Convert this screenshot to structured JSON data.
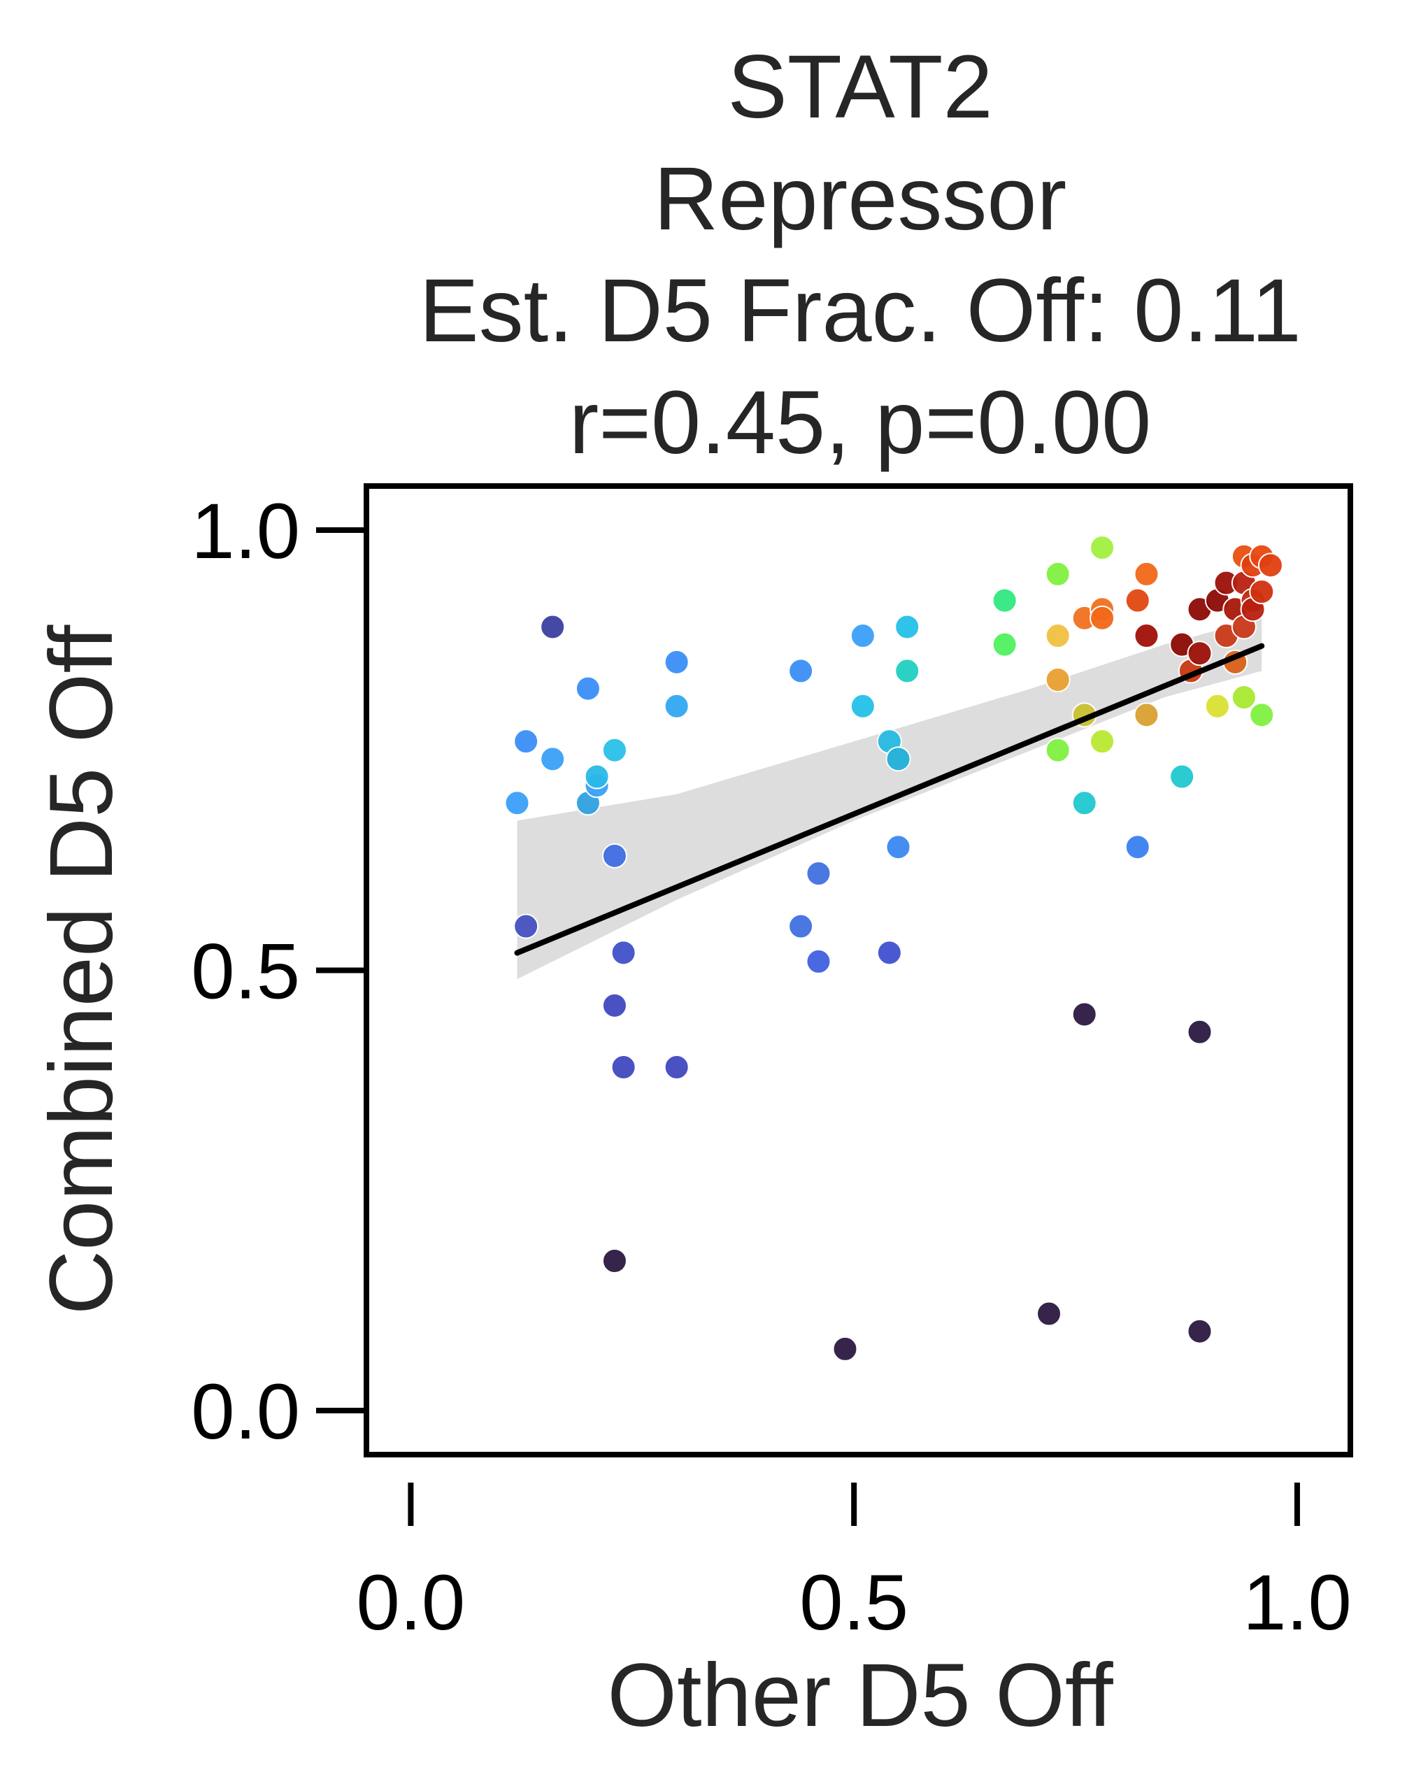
{
  "chart_data": {
    "type": "scatter",
    "title_lines": [
      "STAT2",
      "Repressor",
      "Est. D5 Frac. Off: 0.11",
      "r=0.45, p=0.00"
    ],
    "xlabel": "Other D5 Off",
    "ylabel": "Combined D5 Off",
    "xlim": [
      -0.05,
      1.06
    ],
    "ylim": [
      -0.05,
      1.05
    ],
    "xticks": [
      0.0,
      0.5,
      1.0
    ],
    "yticks": [
      0.0,
      0.5,
      1.0
    ],
    "xtick_labels": [
      "0.0",
      "0.5",
      "1.0"
    ],
    "ytick_labels": [
      "0.0",
      "0.5",
      "1.0"
    ],
    "grid": false,
    "legend": "none",
    "regression": {
      "x_range": [
        0.12,
        0.96
      ],
      "intercept": 0.47,
      "slope": 0.415,
      "ci_lower": [
        [
          0.12,
          0.49
        ],
        [
          0.3,
          0.58
        ],
        [
          0.5,
          0.67
        ],
        [
          0.7,
          0.75
        ],
        [
          0.85,
          0.81
        ],
        [
          0.96,
          0.84
        ]
      ],
      "ci_upper": [
        [
          0.12,
          0.67
        ],
        [
          0.3,
          0.7
        ],
        [
          0.5,
          0.76
        ],
        [
          0.7,
          0.82
        ],
        [
          0.85,
          0.87
        ],
        [
          0.96,
          0.9
        ]
      ],
      "line_color": "#000000",
      "band_color": "#d9d9d9"
    },
    "points": [
      {
        "x": 0.16,
        "y": 0.89,
        "color": "#3b3fa0"
      },
      {
        "x": 0.12,
        "y": 0.69,
        "color": "#3aa0f8"
      },
      {
        "x": 0.13,
        "y": 0.76,
        "color": "#3a8ef8"
      },
      {
        "x": 0.16,
        "y": 0.74,
        "color": "#3aa0f8"
      },
      {
        "x": 0.2,
        "y": 0.82,
        "color": "#3a8ef8"
      },
      {
        "x": 0.2,
        "y": 0.69,
        "color": "#30a0e0"
      },
      {
        "x": 0.21,
        "y": 0.71,
        "color": "#3aa0f8"
      },
      {
        "x": 0.21,
        "y": 0.72,
        "color": "#2ab8e8"
      },
      {
        "x": 0.23,
        "y": 0.75,
        "color": "#2ac0e8"
      },
      {
        "x": 0.23,
        "y": 0.63,
        "color": "#3f6ee0"
      },
      {
        "x": 0.13,
        "y": 0.55,
        "color": "#4550c0"
      },
      {
        "x": 0.24,
        "y": 0.52,
        "color": "#4050c8"
      },
      {
        "x": 0.23,
        "y": 0.46,
        "color": "#4048c0"
      },
      {
        "x": 0.24,
        "y": 0.39,
        "color": "#4048c0"
      },
      {
        "x": 0.3,
        "y": 0.39,
        "color": "#4048c0"
      },
      {
        "x": 0.23,
        "y": 0.17,
        "color": "#2c1840"
      },
      {
        "x": 0.3,
        "y": 0.85,
        "color": "#3a8ef8"
      },
      {
        "x": 0.3,
        "y": 0.8,
        "color": "#30a8f0"
      },
      {
        "x": 0.44,
        "y": 0.84,
        "color": "#3a8ef8"
      },
      {
        "x": 0.44,
        "y": 0.55,
        "color": "#4070e0"
      },
      {
        "x": 0.46,
        "y": 0.61,
        "color": "#4070e0"
      },
      {
        "x": 0.46,
        "y": 0.51,
        "color": "#4060e0"
      },
      {
        "x": 0.49,
        "y": 0.07,
        "color": "#2c1840"
      },
      {
        "x": 0.51,
        "y": 0.88,
        "color": "#3aa0f8"
      },
      {
        "x": 0.51,
        "y": 0.8,
        "color": "#25c0e8"
      },
      {
        "x": 0.54,
        "y": 0.76,
        "color": "#28b8e0"
      },
      {
        "x": 0.55,
        "y": 0.74,
        "color": "#20b0d8"
      },
      {
        "x": 0.55,
        "y": 0.64,
        "color": "#3a88f0"
      },
      {
        "x": 0.54,
        "y": 0.52,
        "color": "#4050d0"
      },
      {
        "x": 0.56,
        "y": 0.89,
        "color": "#25c0e8"
      },
      {
        "x": 0.56,
        "y": 0.84,
        "color": "#20d0c0"
      },
      {
        "x": 0.67,
        "y": 0.92,
        "color": "#30e880"
      },
      {
        "x": 0.67,
        "y": 0.87,
        "color": "#50f060"
      },
      {
        "x": 0.73,
        "y": 0.95,
        "color": "#80f040"
      },
      {
        "x": 0.73,
        "y": 0.88,
        "color": "#f0c040"
      },
      {
        "x": 0.73,
        "y": 0.83,
        "color": "#e8a030"
      },
      {
        "x": 0.73,
        "y": 0.75,
        "color": "#80f040"
      },
      {
        "x": 0.72,
        "y": 0.11,
        "color": "#2c1840"
      },
      {
        "x": 0.76,
        "y": 0.9,
        "color": "#f07020"
      },
      {
        "x": 0.76,
        "y": 0.79,
        "color": "#c8c030"
      },
      {
        "x": 0.76,
        "y": 0.69,
        "color": "#20c8d0"
      },
      {
        "x": 0.76,
        "y": 0.45,
        "color": "#2c1840"
      },
      {
        "x": 0.78,
        "y": 0.98,
        "color": "#a0f040"
      },
      {
        "x": 0.78,
        "y": 0.91,
        "color": "#f07020"
      },
      {
        "x": 0.78,
        "y": 0.9,
        "color": "#f06818"
      },
      {
        "x": 0.78,
        "y": 0.76,
        "color": "#b8e830"
      },
      {
        "x": 0.82,
        "y": 0.92,
        "color": "#e04810"
      },
      {
        "x": 0.83,
        "y": 0.95,
        "color": "#f06818"
      },
      {
        "x": 0.83,
        "y": 0.88,
        "color": "#a01008"
      },
      {
        "x": 0.83,
        "y": 0.79,
        "color": "#d8a030"
      },
      {
        "x": 0.82,
        "y": 0.64,
        "color": "#3a80f0"
      },
      {
        "x": 0.87,
        "y": 0.87,
        "color": "#8c0a04"
      },
      {
        "x": 0.87,
        "y": 0.72,
        "color": "#20c8d0"
      },
      {
        "x": 0.88,
        "y": 0.84,
        "color": "#c83810"
      },
      {
        "x": 0.89,
        "y": 0.86,
        "color": "#9c1008"
      },
      {
        "x": 0.89,
        "y": 0.91,
        "color": "#8c0a04"
      },
      {
        "x": 0.89,
        "y": 0.43,
        "color": "#2c1840"
      },
      {
        "x": 0.89,
        "y": 0.09,
        "color": "#2c1840"
      },
      {
        "x": 0.91,
        "y": 0.92,
        "color": "#8c0a04"
      },
      {
        "x": 0.91,
        "y": 0.8,
        "color": "#d8e030"
      },
      {
        "x": 0.92,
        "y": 0.88,
        "color": "#c83818"
      },
      {
        "x": 0.92,
        "y": 0.94,
        "color": "#9c1008"
      },
      {
        "x": 0.93,
        "y": 0.91,
        "color": "#a81808"
      },
      {
        "x": 0.93,
        "y": 0.85,
        "color": "#d86018"
      },
      {
        "x": 0.94,
        "y": 0.97,
        "color": "#e85010"
      },
      {
        "x": 0.94,
        "y": 0.94,
        "color": "#b82010"
      },
      {
        "x": 0.94,
        "y": 0.89,
        "color": "#c83818"
      },
      {
        "x": 0.94,
        "y": 0.81,
        "color": "#a8e830"
      },
      {
        "x": 0.95,
        "y": 0.96,
        "color": "#e04010"
      },
      {
        "x": 0.95,
        "y": 0.92,
        "color": "#c02810"
      },
      {
        "x": 0.95,
        "y": 0.91,
        "color": "#b82010"
      },
      {
        "x": 0.96,
        "y": 0.97,
        "color": "#e84810"
      },
      {
        "x": 0.96,
        "y": 0.93,
        "color": "#d03010"
      },
      {
        "x": 0.96,
        "y": 0.79,
        "color": "#80f040"
      },
      {
        "x": 0.97,
        "y": 0.96,
        "color": "#e04010"
      }
    ]
  }
}
